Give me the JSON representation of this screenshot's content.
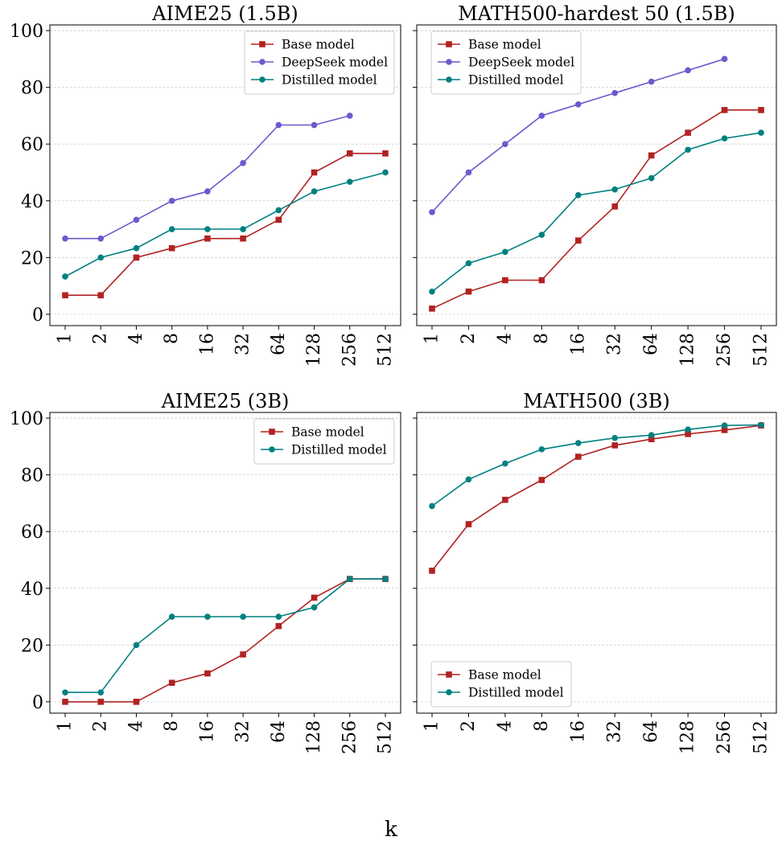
{
  "figure": {
    "xlabel": "k",
    "colors": {
      "base": "#b22222",
      "deepseek": "#6a5acd",
      "distilled": "#008080"
    }
  },
  "chart_data": [
    {
      "type": "line",
      "title": "AIME25 (1.5B)",
      "xlabel": "k",
      "ylabel": "",
      "categories": [
        "1",
        "2",
        "4",
        "8",
        "16",
        "32",
        "64",
        "128",
        "256",
        "512"
      ],
      "ylim": [
        -4,
        102
      ],
      "yticks": [
        0,
        20,
        40,
        60,
        80,
        100
      ],
      "yticklabels": [
        "0",
        "20",
        "40",
        "60",
        "80",
        "100"
      ],
      "grid": true,
      "legend": "top-right",
      "series": [
        {
          "name": "Base model",
          "key": "base",
          "marker": "square",
          "values": [
            6.7,
            6.7,
            20,
            23.3,
            26.7,
            26.7,
            33.3,
            50,
            56.7,
            56.7
          ]
        },
        {
          "name": "DeepSeek model",
          "key": "deepseek",
          "marker": "circle",
          "values": [
            26.7,
            26.7,
            33.3,
            40,
            43.3,
            53.3,
            66.7,
            66.7,
            70,
            null
          ]
        },
        {
          "name": "Distilled model",
          "key": "distilled",
          "marker": "circle",
          "values": [
            13.3,
            20,
            23.3,
            30,
            30,
            30,
            36.7,
            43.3,
            46.7,
            50
          ]
        }
      ]
    },
    {
      "type": "line",
      "title": "MATH500-hardest 50 (1.5B)",
      "xlabel": "k",
      "ylabel": "",
      "categories": [
        "1",
        "2",
        "4",
        "8",
        "16",
        "32",
        "64",
        "128",
        "256",
        "512"
      ],
      "ylim": [
        -4,
        102
      ],
      "yticks": [
        0,
        20,
        40,
        60,
        80,
        100
      ],
      "yticklabels": [],
      "grid": true,
      "legend": "top-left",
      "series": [
        {
          "name": "Base model",
          "key": "base",
          "marker": "square",
          "values": [
            2,
            8,
            12,
            12,
            26,
            38,
            56,
            64,
            72,
            72
          ]
        },
        {
          "name": "DeepSeek model",
          "key": "deepseek",
          "marker": "circle",
          "values": [
            36,
            50,
            60,
            70,
            74,
            78,
            82,
            86,
            90,
            null
          ]
        },
        {
          "name": "Distilled model",
          "key": "distilled",
          "marker": "circle",
          "values": [
            8,
            18,
            22,
            28,
            42,
            44,
            48,
            58,
            62,
            64
          ]
        }
      ]
    },
    {
      "type": "line",
      "title": "AIME25 (3B)",
      "xlabel": "k",
      "ylabel": "",
      "categories": [
        "1",
        "2",
        "4",
        "8",
        "16",
        "32",
        "64",
        "128",
        "256",
        "512"
      ],
      "ylim": [
        -4,
        102
      ],
      "yticks": [
        0,
        20,
        40,
        60,
        80,
        100
      ],
      "yticklabels": [
        "0",
        "20",
        "40",
        "60",
        "80",
        "100"
      ],
      "grid": true,
      "legend": "top-right",
      "series": [
        {
          "name": "Base model",
          "key": "base",
          "marker": "square",
          "values": [
            0,
            0,
            0,
            6.7,
            10,
            16.7,
            26.7,
            36.7,
            43.3,
            43.3
          ]
        },
        {
          "name": "Distilled model",
          "key": "distilled",
          "marker": "circle",
          "values": [
            3.3,
            3.3,
            20,
            30,
            30,
            30,
            30,
            33.3,
            43.3,
            43.3
          ]
        }
      ]
    },
    {
      "type": "line",
      "title": "MATH500 (3B)",
      "xlabel": "k",
      "ylabel": "",
      "categories": [
        "1",
        "2",
        "4",
        "8",
        "16",
        "32",
        "64",
        "128",
        "256",
        "512"
      ],
      "ylim": [
        -4,
        102
      ],
      "yticks": [
        0,
        20,
        40,
        60,
        80,
        100
      ],
      "yticklabels": [],
      "grid": true,
      "legend": "bottom-left",
      "series": [
        {
          "name": "Base model",
          "key": "base",
          "marker": "square",
          "values": [
            46.2,
            62.6,
            71.2,
            78.2,
            86.4,
            90.4,
            92.6,
            94.4,
            95.8,
            97.4
          ]
        },
        {
          "name": "Distilled model",
          "key": "distilled",
          "marker": "circle",
          "values": [
            69,
            78.4,
            84,
            89,
            91.2,
            93,
            94,
            96,
            97.4,
            97.6
          ]
        }
      ]
    }
  ]
}
